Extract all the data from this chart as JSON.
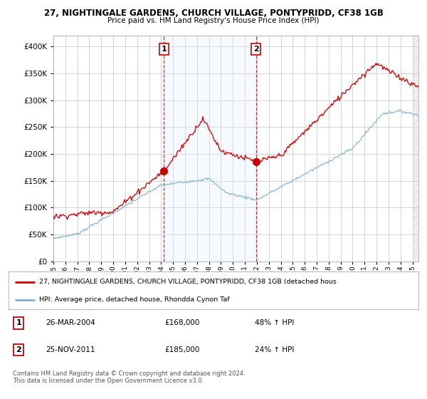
{
  "title1": "27, NIGHTINGALE GARDENS, CHURCH VILLAGE, PONTYPRIDD, CF38 1GB",
  "title2": "Price paid vs. HM Land Registry's House Price Index (HPI)",
  "red_line_label": "27, NIGHTINGALE GARDENS, CHURCH VILLAGE, PONTYPRIDD, CF38 1GB (detached hous",
  "blue_line_label": "HPI: Average price, detached house, Rhondda Cynon Taf",
  "transaction1_date": "26-MAR-2004",
  "transaction1_price": "£168,000",
  "transaction1_hpi": "48% ↑ HPI",
  "transaction2_date": "25-NOV-2011",
  "transaction2_price": "£185,000",
  "transaction2_hpi": "24% ↑ HPI",
  "footer": "Contains HM Land Registry data © Crown copyright and database right 2024.\nThis data is licensed under the Open Government Licence v3.0.",
  "ylim": [
    0,
    420000
  ],
  "yticks": [
    0,
    50000,
    100000,
    150000,
    200000,
    250000,
    300000,
    350000,
    400000
  ],
  "background_color": "#ffffff",
  "plot_bg_color": "#ffffff",
  "grid_color": "#cccccc",
  "red_color": "#cc0000",
  "blue_color": "#7bafd4",
  "shade_color": "#ddeeff",
  "transaction1_x": 2004.23,
  "transaction1_y": 168000,
  "transaction2_x": 2011.92,
  "transaction2_y": 185000,
  "xmin": 1995,
  "xmax": 2025.5
}
